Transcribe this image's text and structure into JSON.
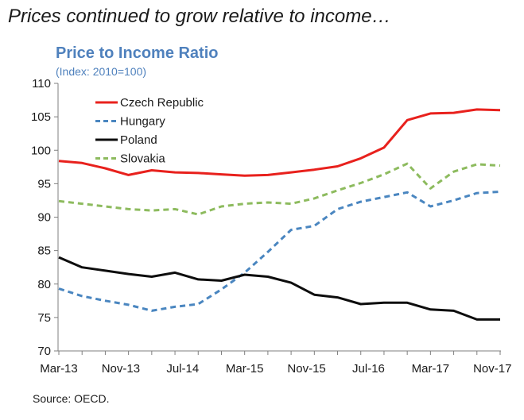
{
  "headline": "Prices continued to grow relative to income…",
  "source": "Source: OECD.",
  "colors": {
    "czech": "#e8211d",
    "hungary": "#4a86c0",
    "poland": "#0d0d0d",
    "slovakia": "#8dbb5e",
    "title": "#4f81bd"
  },
  "chart_data": {
    "type": "line",
    "title": "Price to Income Ratio",
    "subtitle": "(Index: 2010=100)",
    "xlabel": "",
    "ylabel": "",
    "ylim": [
      70,
      110
    ],
    "yticks": [
      70,
      75,
      80,
      85,
      90,
      95,
      100,
      105,
      110
    ],
    "x": [
      "Q1-13",
      "Q2-13",
      "Q3-13",
      "Q4-13",
      "Q1-14",
      "Q2-14",
      "Q3-14",
      "Q4-14",
      "Q1-15",
      "Q2-15",
      "Q3-15",
      "Q4-15",
      "Q1-16",
      "Q2-16",
      "Q3-16",
      "Q4-16",
      "Q1-17",
      "Q2-17",
      "Q3-17",
      "Q4-17"
    ],
    "xtick_labels": [
      {
        "label": "Mar-13",
        "index": 0
      },
      {
        "label": "Nov-13",
        "index": 2.667
      },
      {
        "label": "Jul-14",
        "index": 5.333
      },
      {
        "label": "Mar-15",
        "index": 8
      },
      {
        "label": "Nov-15",
        "index": 10.667
      },
      {
        "label": "Jul-16",
        "index": 13.333
      },
      {
        "label": "Mar-17",
        "index": 16
      },
      {
        "label": "Nov-17",
        "index": 18.667
      }
    ],
    "legend": "top-left",
    "grid": false,
    "series": [
      {
        "name": "Czech Republic",
        "color_key": "czech",
        "dash": "solid",
        "values": [
          98.4,
          98.1,
          97.3,
          96.3,
          97.0,
          96.7,
          96.6,
          96.4,
          96.2,
          96.3,
          96.7,
          97.1,
          97.6,
          98.8,
          100.4,
          104.5,
          105.5,
          105.6,
          106.1,
          106.0
        ]
      },
      {
        "name": "Hungary",
        "color_key": "hungary",
        "dash": "dashed",
        "values": [
          79.3,
          78.2,
          77.5,
          76.9,
          76.0,
          76.6,
          77.0,
          79.2,
          81.7,
          84.8,
          88.1,
          88.7,
          91.2,
          92.3,
          93.0,
          93.7,
          91.6,
          92.5,
          93.6,
          93.8
        ]
      },
      {
        "name": "Poland",
        "color_key": "poland",
        "dash": "solid",
        "values": [
          84.0,
          82.5,
          82.0,
          81.5,
          81.1,
          81.7,
          80.7,
          80.5,
          81.4,
          81.1,
          80.2,
          78.4,
          78.0,
          77.0,
          77.2,
          77.2,
          76.2,
          76.0,
          74.7,
          74.7
        ]
      },
      {
        "name": "Slovakia",
        "color_key": "slovakia",
        "dash": "dashed",
        "values": [
          92.4,
          92.0,
          91.6,
          91.2,
          91.0,
          91.2,
          90.4,
          91.6,
          92.0,
          92.2,
          92.0,
          92.8,
          94.0,
          95.1,
          96.4,
          98.0,
          94.3,
          96.8,
          97.9,
          97.7
        ]
      }
    ]
  }
}
